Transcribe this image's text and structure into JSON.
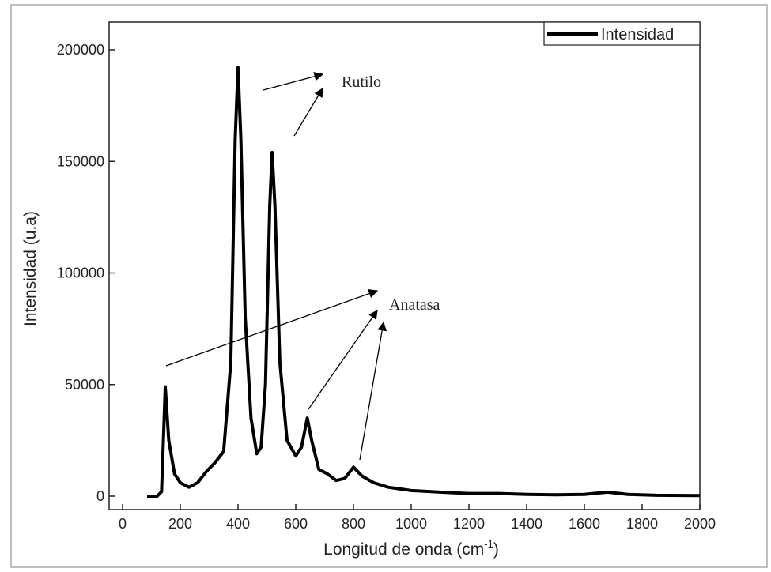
{
  "chart_data": {
    "type": "line",
    "xlabel": [
      "Longitud de onda (cm",
      "-1",
      ")"
    ],
    "ylabel": "Intensidad (u.a)",
    "annotations": [
      "Rutilo",
      "Anatasa"
    ],
    "x": [
      85,
      120,
      135,
      148,
      160,
      180,
      200,
      230,
      260,
      290,
      320,
      350,
      375,
      390,
      400,
      410,
      425,
      445,
      465,
      480,
      495,
      510,
      518,
      528,
      545,
      570,
      600,
      620,
      640,
      655,
      680,
      710,
      740,
      770,
      800,
      830,
      870,
      920,
      1000,
      1100,
      1200,
      1300,
      1400,
      1500,
      1600,
      1680,
      1750,
      1850,
      2000
    ],
    "series": [
      {
        "name": "Intensidad",
        "color": "#000000",
        "values": [
          0,
          0,
          2000,
          49000,
          25000,
          10000,
          6000,
          4000,
          6000,
          11000,
          15000,
          20000,
          60000,
          160000,
          192000,
          160000,
          80000,
          35000,
          19000,
          22000,
          50000,
          130000,
          154000,
          130000,
          60000,
          25000,
          18000,
          22000,
          35000,
          25000,
          12000,
          10000,
          7000,
          8000,
          13000,
          9000,
          6000,
          4000,
          2500,
          1800,
          1200,
          1200,
          800,
          600,
          800,
          1800,
          800,
          400,
          300
        ]
      }
    ],
    "xlim": [
      0,
      2000
    ],
    "ylim": [
      0,
      200000
    ],
    "xticks": [
      0,
      200,
      400,
      600,
      800,
      1000,
      1200,
      1400,
      1600,
      1800,
      2000
    ],
    "yticks": [
      0,
      50000,
      100000,
      150000,
      200000
    ],
    "grid": false,
    "legend": "upper right"
  }
}
